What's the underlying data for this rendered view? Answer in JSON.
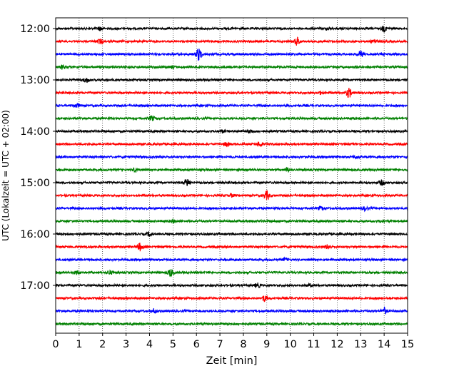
{
  "chart_data": {
    "type": "line",
    "title": "",
    "xlabel": "Zeit  [min]",
    "ylabel": "UTC (Lokalzeit = UTC + 02:00)",
    "xlim": [
      0,
      15
    ],
    "x_ticks": [
      "0",
      "1",
      "2",
      "3",
      "4",
      "5",
      "6",
      "7",
      "8",
      "9",
      "10",
      "11",
      "12",
      "13",
      "14",
      "15"
    ],
    "y_ticks": [
      "12:00",
      "13:00",
      "14:00",
      "15:00",
      "16:00",
      "17:00"
    ],
    "grid": "vertical dotted at each minute",
    "trace_colors": [
      "#000000",
      "#ff0000",
      "#0000ff",
      "#008000"
    ],
    "traces": [
      {
        "start": "12:00",
        "color": "#000000",
        "events": [
          {
            "t": 1.9,
            "amp": 0.25
          },
          {
            "t": 11.6,
            "amp": 0.2
          },
          {
            "t": 14.0,
            "amp": 0.4
          }
        ]
      },
      {
        "start": "12:15",
        "color": "#ff0000",
        "events": [
          {
            "t": 1.9,
            "amp": 0.3
          },
          {
            "t": 10.3,
            "amp": 0.6
          },
          {
            "t": 13.6,
            "amp": 0.35
          }
        ]
      },
      {
        "start": "12:30",
        "color": "#0000ff",
        "events": [
          {
            "t": 6.1,
            "amp": 1.0
          },
          {
            "t": 13.0,
            "amp": 0.45
          }
        ]
      },
      {
        "start": "12:45",
        "color": "#008000",
        "events": [
          {
            "t": 0.3,
            "amp": 0.3
          },
          {
            "t": 5.0,
            "amp": 0.15
          }
        ]
      },
      {
        "start": "13:00",
        "color": "#000000",
        "events": [
          {
            "t": 1.3,
            "amp": 0.3
          }
        ]
      },
      {
        "start": "13:15",
        "color": "#ff0000",
        "events": [
          {
            "t": 12.5,
            "amp": 0.7
          },
          {
            "t": 11.3,
            "amp": 0.2
          }
        ]
      },
      {
        "start": "13:30",
        "color": "#0000ff",
        "events": [
          {
            "t": 0.9,
            "amp": 0.3
          }
        ]
      },
      {
        "start": "13:45",
        "color": "#008000",
        "events": [
          {
            "t": 4.1,
            "amp": 0.35
          }
        ]
      },
      {
        "start": "14:00",
        "color": "#000000",
        "events": [
          {
            "t": 7.1,
            "amp": 0.2
          },
          {
            "t": 8.3,
            "amp": 0.25
          }
        ]
      },
      {
        "start": "14:15",
        "color": "#ff0000",
        "events": [
          {
            "t": 7.3,
            "amp": 0.3
          },
          {
            "t": 8.7,
            "amp": 0.35
          }
        ]
      },
      {
        "start": "14:30",
        "color": "#0000ff",
        "events": [
          {
            "t": 12.8,
            "amp": 0.2
          }
        ]
      },
      {
        "start": "14:45",
        "color": "#008000",
        "events": [
          {
            "t": 3.4,
            "amp": 0.3
          },
          {
            "t": 9.9,
            "amp": 0.3
          }
        ]
      },
      {
        "start": "15:00",
        "color": "#000000",
        "events": [
          {
            "t": 5.6,
            "amp": 0.55
          },
          {
            "t": 13.9,
            "amp": 0.35
          }
        ]
      },
      {
        "start": "15:15",
        "color": "#ff0000",
        "events": [
          {
            "t": 9.0,
            "amp": 0.65
          },
          {
            "t": 7.5,
            "amp": 0.2
          }
        ]
      },
      {
        "start": "15:30",
        "color": "#0000ff",
        "events": [
          {
            "t": 13.2,
            "amp": 0.3
          },
          {
            "t": 11.3,
            "amp": 0.2
          }
        ]
      },
      {
        "start": "15:45",
        "color": "#008000",
        "events": [
          {
            "t": 5.0,
            "amp": 0.2
          },
          {
            "t": 13.9,
            "amp": 0.15
          }
        ]
      },
      {
        "start": "16:00",
        "color": "#000000",
        "events": [
          {
            "t": 4.0,
            "amp": 0.3
          }
        ]
      },
      {
        "start": "16:15",
        "color": "#ff0000",
        "events": [
          {
            "t": 3.6,
            "amp": 0.55
          },
          {
            "t": 11.6,
            "amp": 0.3
          }
        ]
      },
      {
        "start": "16:30",
        "color": "#0000ff",
        "events": [
          {
            "t": 9.8,
            "amp": 0.2
          }
        ]
      },
      {
        "start": "16:45",
        "color": "#008000",
        "events": [
          {
            "t": 4.9,
            "amp": 0.55
          },
          {
            "t": 0.9,
            "amp": 0.3
          },
          {
            "t": 2.3,
            "amp": 0.25
          }
        ]
      },
      {
        "start": "17:00",
        "color": "#000000",
        "events": [
          {
            "t": 8.6,
            "amp": 0.3
          },
          {
            "t": 10.8,
            "amp": 0.2
          }
        ]
      },
      {
        "start": "17:15",
        "color": "#ff0000",
        "events": [
          {
            "t": 8.9,
            "amp": 0.45
          }
        ]
      },
      {
        "start": "17:30",
        "color": "#0000ff",
        "events": [
          {
            "t": 14.0,
            "amp": 0.45
          },
          {
            "t": 4.2,
            "amp": 0.3
          }
        ]
      },
      {
        "start": "17:45",
        "color": "#008000",
        "events": []
      }
    ]
  }
}
